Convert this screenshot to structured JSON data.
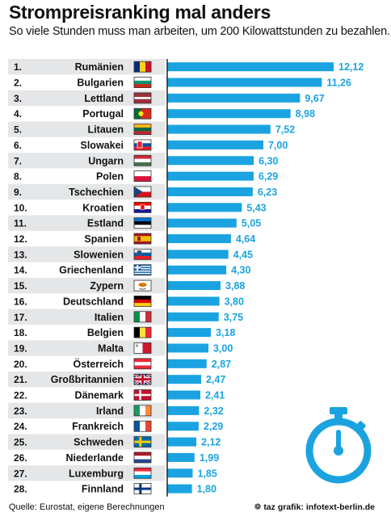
{
  "header": {
    "title": "Strompreisranking mal anders",
    "subtitle": "So viele Stunden muss man arbeiten, um 200 Kilowattstunden zu bezahlen."
  },
  "footer": {
    "source": "Quelle: Eurostat, eigene Berechnungen",
    "credit": "taz grafik: infotext-berlin.de"
  },
  "colors": {
    "bar": "#1aa3e0",
    "value_text": "#1aa3e0",
    "row_band": "#e4e6e8",
    "icon": "#1aa3e0"
  },
  "icons": {
    "stopwatch": "stopwatch-icon",
    "credit": "taz-paw-icon"
  },
  "chart_data": {
    "type": "bar",
    "orientation": "horizontal",
    "title": "Strompreisranking mal anders",
    "subtitle": "So viele Stunden muss man arbeiten, um 200 Kilowattstunden zu bezahlen.",
    "xlabel": "",
    "ylabel": "",
    "xlim": [
      0,
      12.12
    ],
    "grid": false,
    "legend": "none",
    "ranks": [
      "1.",
      "2.",
      "3.",
      "4.",
      "5.",
      "6.",
      "7.",
      "8.",
      "9.",
      "10.",
      "11.",
      "12.",
      "13.",
      "14.",
      "15.",
      "16.",
      "17.",
      "18.",
      "19.",
      "20.",
      "21.",
      "22.",
      "23.",
      "24.",
      "25.",
      "26.",
      "27.",
      "28."
    ],
    "categories": [
      "Rumänien",
      "Bulgarien",
      "Lettland",
      "Portugal",
      "Litauen",
      "Slowakei",
      "Ungarn",
      "Polen",
      "Tschechien",
      "Kroatien",
      "Estland",
      "Spanien",
      "Slowenien",
      "Griechenland",
      "Zypern",
      "Deutschland",
      "Italien",
      "Belgien",
      "Malta",
      "Österreich",
      "Großbritannien",
      "Dänemark",
      "Irland",
      "Frankreich",
      "Schweden",
      "Niederlande",
      "Luxemburg",
      "Finnland"
    ],
    "flags": [
      "ro",
      "bg",
      "lv",
      "pt",
      "lt",
      "sk",
      "hu",
      "pl",
      "cz",
      "hr",
      "ee",
      "es",
      "si",
      "gr",
      "cy",
      "de",
      "it",
      "be",
      "mt",
      "at",
      "gb",
      "dk",
      "ie",
      "fr",
      "se",
      "nl",
      "lu",
      "fi"
    ],
    "values": [
      12.12,
      11.26,
      9.67,
      8.98,
      7.52,
      7.0,
      6.3,
      6.29,
      6.23,
      5.43,
      5.05,
      4.64,
      4.45,
      4.3,
      3.88,
      3.8,
      3.75,
      3.18,
      3.0,
      2.87,
      2.47,
      2.41,
      2.32,
      2.29,
      2.12,
      1.99,
      1.85,
      1.8
    ],
    "value_labels": [
      "12,12",
      "11,26",
      "9,67",
      "8,98",
      "7,52",
      "7,00",
      "6,30",
      "6,29",
      "6,23",
      "5,43",
      "5,05",
      "4,64",
      "4,45",
      "4,30",
      "3,88",
      "3,80",
      "3,75",
      "3,18",
      "3,00",
      "2,87",
      "2,47",
      "2,41",
      "2,32",
      "2,29",
      "2,12",
      "1,99",
      "1,85",
      "1,80"
    ]
  }
}
